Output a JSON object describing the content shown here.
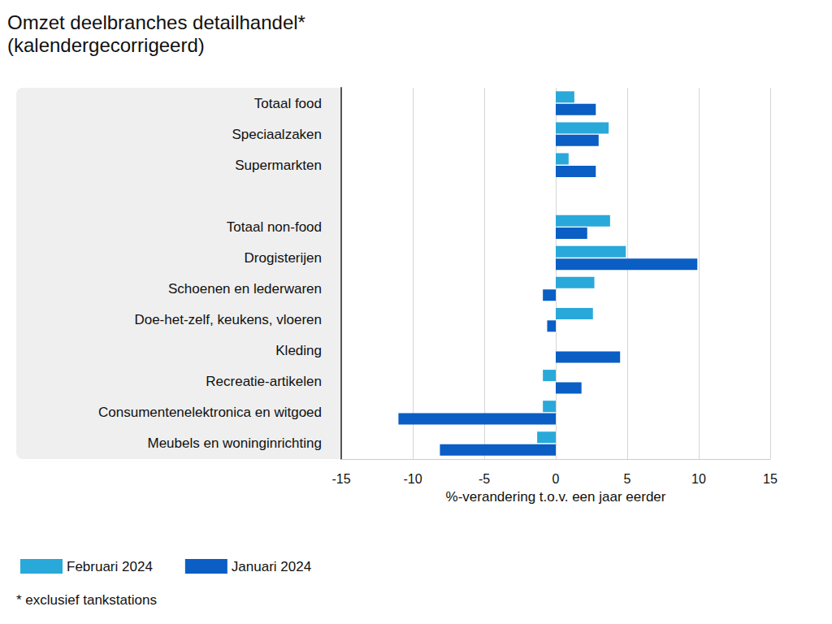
{
  "chart_data": {
    "type": "bar",
    "orientation": "horizontal",
    "title": "Omzet deelbranches detailhandel*",
    "subtitle": "(kalendergecorrigeerd)",
    "x_label": "%-verandering t.o.v. een jaar eerder",
    "annotations": [
      "* exclusief tankstations"
    ],
    "categories": [
      "Totaal food",
      "Speciaalzaken",
      "Supermarkten",
      null,
      "Totaal non-food",
      "Drogisterijen",
      "Schoenen en lederwaren",
      "Doe-het-zelf, keukens, vloeren",
      "Kleding",
      "Recreatie-artikelen",
      "Consumentenelektronica en witgoed",
      "Meubels en woninginrichting"
    ],
    "series": [
      {
        "name": "Februari 2024",
        "color": "#29a9d9",
        "values": [
          1.3,
          3.7,
          0.9,
          null,
          3.8,
          4.9,
          2.7,
          2.6,
          0.0,
          -0.9,
          -0.9,
          -1.3
        ]
      },
      {
        "name": "Januari 2024",
        "color": "#0a5ec4",
        "values": [
          2.8,
          3.0,
          2.8,
          null,
          2.2,
          9.9,
          -0.9,
          -0.6,
          4.5,
          1.8,
          -11.0,
          -8.1
        ]
      }
    ],
    "xlim": [
      -15,
      15
    ],
    "xticks": [
      -15,
      -10,
      -5,
      0,
      5,
      10,
      15
    ],
    "grid": true,
    "legend": "bottom",
    "data_labels": false
  }
}
